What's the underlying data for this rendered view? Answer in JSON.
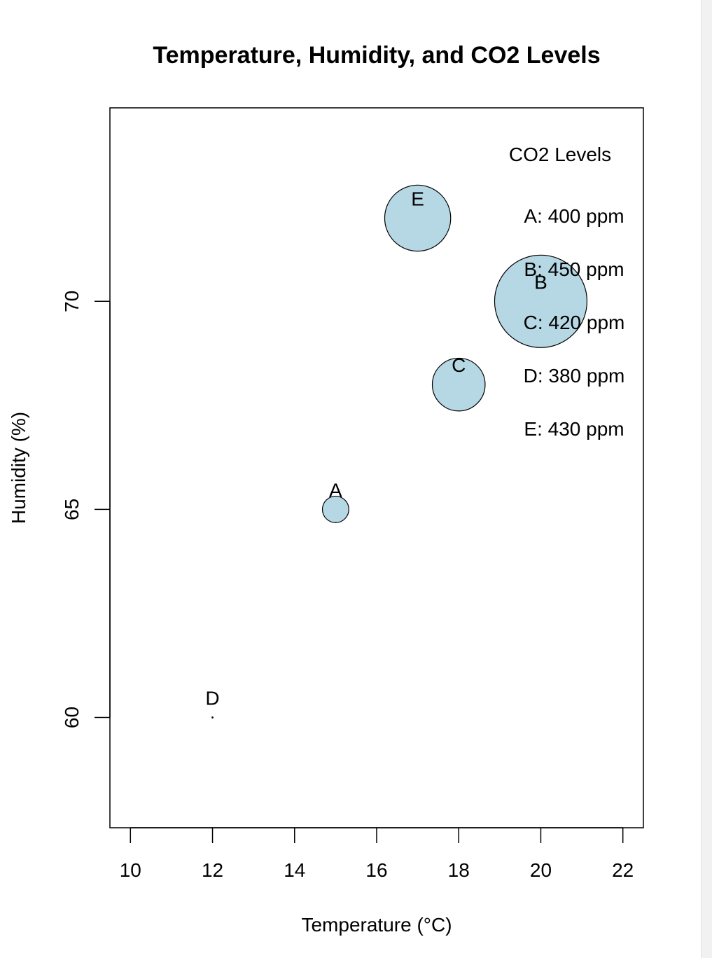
{
  "chart_data": {
    "type": "scatter",
    "title": "Temperature, Humidity, and CO2 Levels",
    "xlabel": "Temperature (°C)",
    "ylabel": "Humidity (%)",
    "xlim": [
      9.5,
      22.5
    ],
    "ylim": [
      57.35,
      74.65
    ],
    "x_ticks": [
      10,
      12,
      14,
      16,
      18,
      20,
      22
    ],
    "y_ticks": [
      60,
      65,
      70
    ],
    "grid": false,
    "bubble_color": "#b6d8e4",
    "points": [
      {
        "label": "A",
        "x": 15,
        "y": 65,
        "co2": 400
      },
      {
        "label": "B",
        "x": 20,
        "y": 70,
        "co2": 450
      },
      {
        "label": "C",
        "x": 18,
        "y": 68,
        "co2": 420
      },
      {
        "label": "D",
        "x": 12,
        "y": 60,
        "co2": 380
      },
      {
        "label": "E",
        "x": 17,
        "y": 72,
        "co2": 430
      }
    ],
    "legend": {
      "title": "CO2 Levels",
      "position": "top-right",
      "entries": [
        "A: 400 ppm",
        "B: 450 ppm",
        "C: 420 ppm",
        "D: 380 ppm",
        "E: 430 ppm"
      ]
    }
  }
}
